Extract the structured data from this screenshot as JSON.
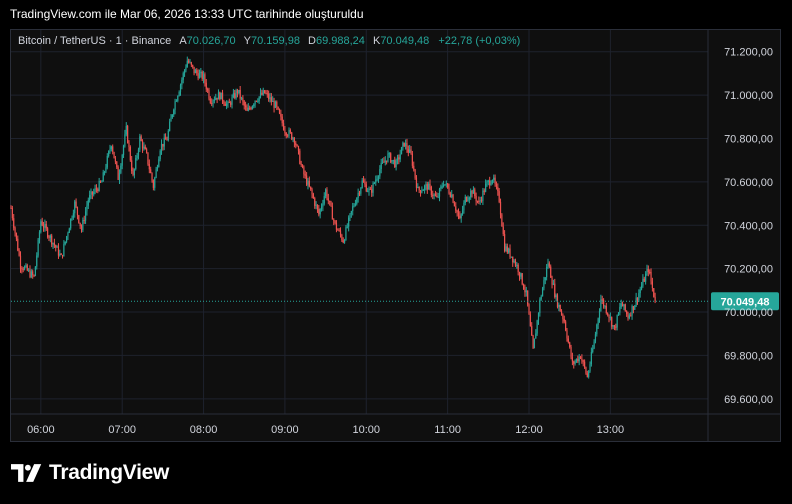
{
  "caption": "TradingView.com ile Mar 06, 2026 13:33 UTC tarihinde oluşturuldu",
  "legend": {
    "symbol": "Bitcoin / TetherUS · 1 · Binance",
    "open_label": "A",
    "open_value": "70.026,70",
    "high_label": "Y",
    "high_value": "70.159,98",
    "low_label": "D",
    "low_value": "69.988,24",
    "close_label": "K",
    "close_value": "70.049,48",
    "change": "+22,78 (+0,03%)"
  },
  "brand": {
    "name": "TradingView",
    "logo_icon": "tradingview-logo-icon"
  },
  "colors": {
    "up": "#26a69a",
    "down": "#ef5350",
    "background": "#0f0f0f",
    "grid": "#1e222d",
    "last_price": "#26a69a"
  },
  "chart_data": {
    "type": "candlestick",
    "x_ticks": [
      "06:00",
      "07:00",
      "08:00",
      "09:00",
      "10:00",
      "11:00",
      "12:00",
      "13:00"
    ],
    "y_ticks": [
      "71.200,00",
      "71.000,00",
      "70.800,00",
      "70.600,00",
      "70.400,00",
      "70.200,00",
      "70.000,00",
      "69.800,00",
      "69.600,00"
    ],
    "y_tick_values": [
      71200,
      71000,
      70800,
      70600,
      70400,
      70200,
      70000,
      69800,
      69600
    ],
    "ylim": [
      69530,
      71300
    ],
    "xlim": [
      "05:38",
      "14:12"
    ],
    "last_price": 70049.48,
    "last_price_label": "70.049,48",
    "grid": true,
    "close_path": [
      [
        "05:38",
        70480
      ],
      [
        "05:45",
        70220
      ],
      [
        "05:55",
        70160
      ],
      [
        "06:00",
        70420
      ],
      [
        "06:10",
        70310
      ],
      [
        "06:15",
        70250
      ],
      [
        "06:25",
        70500
      ],
      [
        "06:30",
        70380
      ],
      [
        "06:35",
        70520
      ],
      [
        "06:45",
        70600
      ],
      [
        "06:52",
        70780
      ],
      [
        "06:57",
        70620
      ],
      [
        "07:03",
        70840
      ],
      [
        "07:08",
        70620
      ],
      [
        "07:13",
        70800
      ],
      [
        "07:18",
        70720
      ],
      [
        "07:23",
        70580
      ],
      [
        "07:28",
        70760
      ],
      [
        "07:33",
        70800
      ],
      [
        "07:38",
        70950
      ],
      [
        "07:43",
        71050
      ],
      [
        "07:48",
        71160
      ],
      [
        "07:53",
        71110
      ],
      [
        "08:00",
        71080
      ],
      [
        "08:05",
        70980
      ],
      [
        "08:12",
        71000
      ],
      [
        "08:18",
        70950
      ],
      [
        "08:25",
        71020
      ],
      [
        "08:32",
        70920
      ],
      [
        "08:38",
        70980
      ],
      [
        "08:45",
        71010
      ],
      [
        "08:53",
        70950
      ],
      [
        "09:00",
        70840
      ],
      [
        "09:07",
        70800
      ],
      [
        "09:13",
        70650
      ],
      [
        "09:20",
        70540
      ],
      [
        "09:25",
        70450
      ],
      [
        "09:30",
        70560
      ],
      [
        "09:37",
        70400
      ],
      [
        "09:43",
        70330
      ],
      [
        "09:50",
        70480
      ],
      [
        "09:57",
        70600
      ],
      [
        "10:03",
        70550
      ],
      [
        "10:10",
        70660
      ],
      [
        "10:16",
        70720
      ],
      [
        "10:22",
        70680
      ],
      [
        "10:28",
        70780
      ],
      [
        "10:33",
        70720
      ],
      [
        "10:38",
        70560
      ],
      [
        "10:45",
        70580
      ],
      [
        "10:52",
        70520
      ],
      [
        "10:57",
        70600
      ],
      [
        "11:03",
        70540
      ],
      [
        "11:09",
        70420
      ],
      [
        "11:13",
        70520
      ],
      [
        "11:18",
        70560
      ],
      [
        "11:23",
        70500
      ],
      [
        "11:28",
        70580
      ],
      [
        "11:33",
        70620
      ],
      [
        "11:38",
        70520
      ],
      [
        "11:42",
        70300
      ],
      [
        "11:47",
        70260
      ],
      [
        "11:52",
        70200
      ],
      [
        "11:58",
        70080
      ],
      [
        "12:03",
        69820
      ],
      [
        "12:08",
        70050
      ],
      [
        "12:14",
        70230
      ],
      [
        "12:20",
        70060
      ],
      [
        "12:26",
        69960
      ],
      [
        "12:32",
        69760
      ],
      [
        "12:38",
        69800
      ],
      [
        "12:43",
        69700
      ],
      [
        "12:48",
        69860
      ],
      [
        "12:53",
        70060
      ],
      [
        "12:58",
        70000
      ],
      [
        "13:03",
        69920
      ],
      [
        "13:08",
        70040
      ],
      [
        "13:13",
        69980
      ],
      [
        "13:18",
        70040
      ],
      [
        "13:23",
        70120
      ],
      [
        "13:28",
        70200
      ],
      [
        "13:33",
        70049
      ]
    ]
  }
}
